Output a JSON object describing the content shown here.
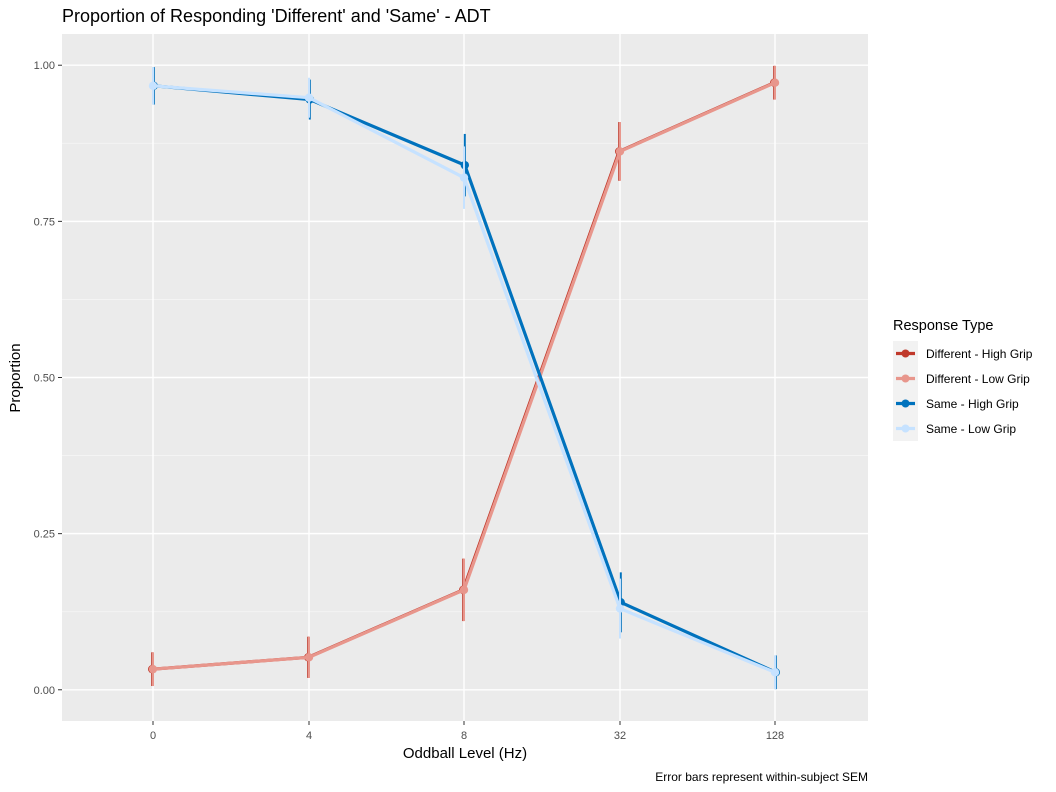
{
  "chart_data": {
    "type": "line",
    "title": "Proportion of Responding 'Different' and 'Same' - ADT",
    "xlabel": "Oddball Level (Hz)",
    "ylabel": "Proportion",
    "caption": "Error bars represent within-subject SEM",
    "categories": [
      "0",
      "4",
      "8",
      "32",
      "128"
    ],
    "ylim": [
      -0.05,
      1.05
    ],
    "yticks": [
      0.0,
      0.25,
      0.5,
      0.75,
      1.0
    ],
    "ytick_labels": [
      "0.00",
      "0.25",
      "0.50",
      "0.75",
      "1.00"
    ],
    "grid": true,
    "legend": {
      "title": "Response Type",
      "position": "right"
    },
    "series": [
      {
        "name": "Different - High Grip",
        "color": "#c0392b",
        "values": [
          0.033,
          0.052,
          0.16,
          0.862,
          0.972
        ],
        "errors": [
          0.027,
          0.033,
          0.05,
          0.047,
          0.027
        ]
      },
      {
        "name": "Different - Low Grip",
        "color": "#e8968c",
        "values": [
          0.033,
          0.052,
          0.16,
          0.862,
          0.972
        ],
        "errors": [
          0.027,
          0.033,
          0.05,
          0.047,
          0.027
        ]
      },
      {
        "name": "Same - High Grip",
        "color": "#0072bd",
        "values": [
          0.967,
          0.945,
          0.84,
          0.14,
          0.028
        ],
        "errors": [
          0.03,
          0.032,
          0.05,
          0.048,
          0.027
        ]
      },
      {
        "name": "Same - Low Grip",
        "color": "#c6e2ff",
        "values": [
          0.967,
          0.948,
          0.82,
          0.13,
          0.028
        ],
        "errors": [
          0.03,
          0.032,
          0.05,
          0.048,
          0.027
        ]
      }
    ]
  }
}
